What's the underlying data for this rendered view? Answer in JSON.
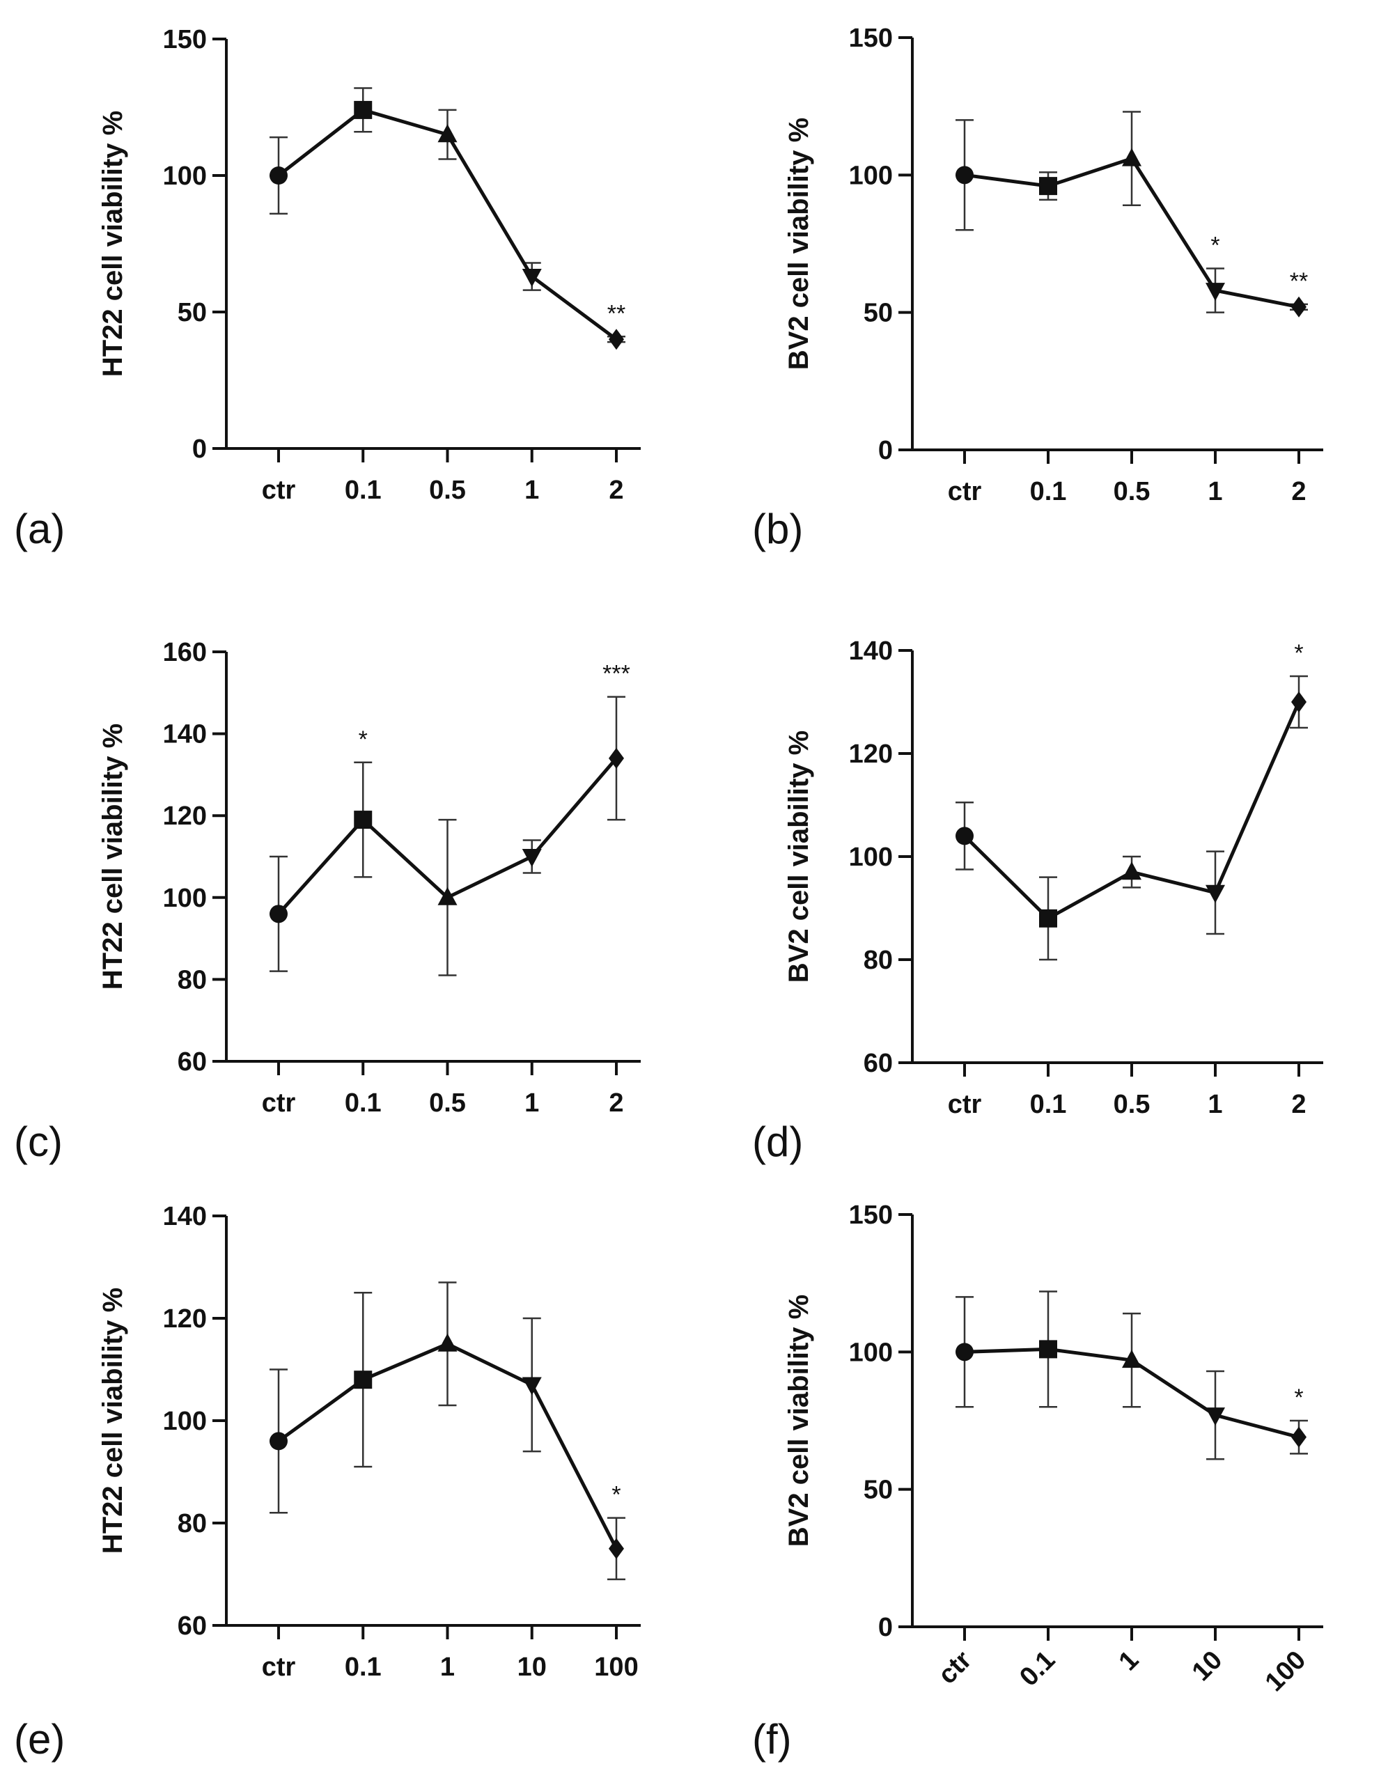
{
  "chart_data": [
    {
      "panel_label": "(a)",
      "type": "line",
      "ylabel": "HT22 cell viability %",
      "categories": [
        "ctr",
        "0.1",
        "0.5",
        "1",
        "2"
      ],
      "ylim": [
        0,
        150
      ],
      "yticks": [
        0,
        50,
        100,
        150
      ],
      "xtick_rotation": 0,
      "markers": [
        "circle",
        "square",
        "triangle-up",
        "triangle-down",
        "diamond"
      ],
      "values": [
        100,
        124,
        115,
        63,
        40
      ],
      "error": [
        14,
        8,
        9,
        5,
        1
      ],
      "significance": [
        "",
        "",
        "",
        "",
        "**"
      ]
    },
    {
      "panel_label": "(b)",
      "type": "line",
      "ylabel": "BV2 cell viability %",
      "categories": [
        "ctr",
        "0.1",
        "0.5",
        "1",
        "2"
      ],
      "ylim": [
        0,
        150
      ],
      "yticks": [
        0,
        50,
        100,
        150
      ],
      "xtick_rotation": 0,
      "markers": [
        "circle",
        "square",
        "triangle-up",
        "triangle-down",
        "diamond"
      ],
      "values": [
        100,
        96,
        106,
        58,
        52
      ],
      "error": [
        20,
        5,
        17,
        8,
        1
      ],
      "significance": [
        "",
        "",
        "",
        "*",
        "**"
      ]
    },
    {
      "panel_label": "(c)",
      "type": "line",
      "ylabel": "HT22 cell viability %",
      "categories": [
        "ctr",
        "0.1",
        "0.5",
        "1",
        "2"
      ],
      "ylim": [
        60,
        160
      ],
      "yticks": [
        60,
        80,
        100,
        120,
        140,
        160
      ],
      "xtick_rotation": 0,
      "markers": [
        "circle",
        "square",
        "triangle-up",
        "triangle-down",
        "diamond"
      ],
      "values": [
        96,
        119,
        100,
        110,
        134
      ],
      "error": [
        14,
        14,
        19,
        4,
        15
      ],
      "significance": [
        "",
        "*",
        "",
        "",
        "***"
      ]
    },
    {
      "panel_label": "(d)",
      "type": "line",
      "ylabel": "BV2 cell viability %",
      "categories": [
        "ctr",
        "0.1",
        "0.5",
        "1",
        "2"
      ],
      "ylim": [
        60,
        140
      ],
      "yticks": [
        60,
        80,
        100,
        120,
        140
      ],
      "xtick_rotation": 0,
      "markers": [
        "circle",
        "square",
        "triangle-up",
        "triangle-down",
        "diamond"
      ],
      "values": [
        104,
        88,
        97,
        93,
        130
      ],
      "error": [
        6.5,
        8,
        3,
        8,
        5
      ],
      "significance": [
        "",
        "",
        "",
        "",
        "*"
      ]
    },
    {
      "panel_label": "(e)",
      "type": "line",
      "ylabel": "HT22 cell viability %",
      "categories": [
        "ctr",
        "0.1",
        "1",
        "10",
        "100"
      ],
      "ylim": [
        60,
        140
      ],
      "yticks": [
        60,
        80,
        100,
        120,
        140
      ],
      "xtick_rotation": 0,
      "markers": [
        "circle",
        "square",
        "triangle-up",
        "triangle-down",
        "diamond"
      ],
      "values": [
        96,
        108,
        115,
        107,
        75
      ],
      "error": [
        14,
        17,
        12,
        13,
        6
      ],
      "significance": [
        "",
        "",
        "",
        "",
        "*"
      ]
    },
    {
      "panel_label": "(f)",
      "type": "line",
      "ylabel": "BV2 cell viability %",
      "categories": [
        "ctr",
        "0.1",
        "1",
        "10",
        "100"
      ],
      "ylim": [
        0,
        150
      ],
      "yticks": [
        0,
        50,
        100,
        150
      ],
      "xtick_rotation": -45,
      "markers": [
        "circle",
        "square",
        "triangle-up",
        "triangle-down",
        "diamond"
      ],
      "values": [
        100,
        101,
        97,
        77,
        69
      ],
      "error": [
        20,
        21,
        17,
        16,
        6
      ],
      "significance": [
        "",
        "",
        "",
        "",
        "*"
      ]
    }
  ]
}
